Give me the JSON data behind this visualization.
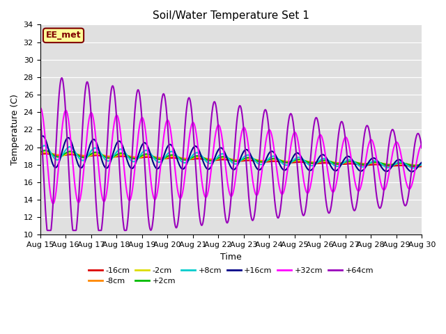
{
  "title": "Soil/Water Temperature Set 1",
  "xlabel": "Time",
  "ylabel": "Temperature (C)",
  "xlim": [
    0,
    15
  ],
  "ylim": [
    10,
    34
  ],
  "yticks": [
    10,
    12,
    14,
    16,
    18,
    20,
    22,
    24,
    26,
    28,
    30,
    32,
    34
  ],
  "xtick_labels": [
    "Aug 15",
    "Aug 16",
    "Aug 17",
    "Aug 18",
    "Aug 19",
    "Aug 20",
    "Aug 21",
    "Aug 22",
    "Aug 23",
    "Aug 24",
    "Aug 25",
    "Aug 26",
    "Aug 27",
    "Aug 28",
    "Aug 29",
    "Aug 30"
  ],
  "label_box_text": "EE_met",
  "label_box_facecolor": "#ffff99",
  "label_box_edgecolor": "#800000",
  "background_color": "#e0e0e0",
  "series_order": [
    "-16cm",
    "-8cm",
    "-2cm",
    "+2cm",
    "+8cm",
    "+16cm",
    "+32cm",
    "+64cm"
  ],
  "series": {
    "-16cm": {
      "color": "#dd0000",
      "lw": 1.5
    },
    "-8cm": {
      "color": "#ff8800",
      "lw": 1.5
    },
    "-2cm": {
      "color": "#dddd00",
      "lw": 1.5
    },
    "+2cm": {
      "color": "#00bb00",
      "lw": 1.5
    },
    "+8cm": {
      "color": "#00cccc",
      "lw": 1.5
    },
    "+16cm": {
      "color": "#000088",
      "lw": 1.5
    },
    "+32cm": {
      "color": "#ff00ff",
      "lw": 1.5
    },
    "+64cm": {
      "color": "#9900bb",
      "lw": 1.5
    }
  },
  "legend_ncol": 6,
  "figsize": [
    6.4,
    4.8
  ],
  "dpi": 100
}
